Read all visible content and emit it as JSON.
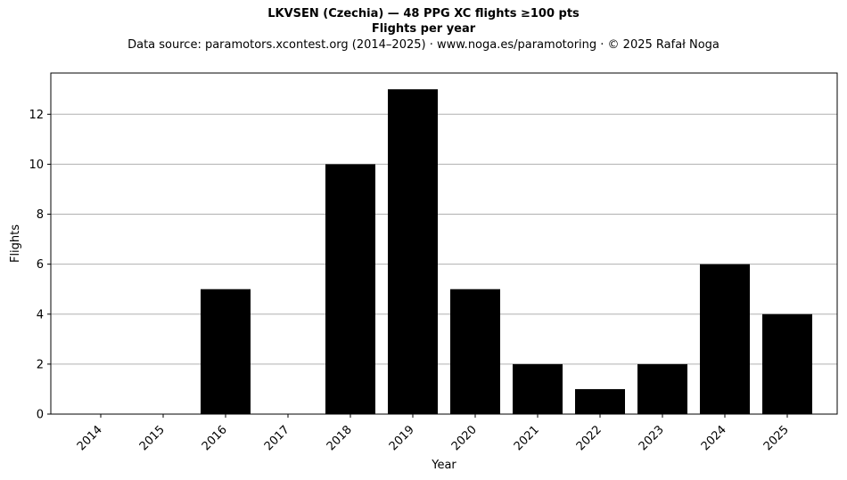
{
  "chart_data": {
    "type": "bar",
    "title": "LKVSEN (Czechia)  —  48 PPG XC flights ≥100 pts",
    "subtitle": "Flights per year",
    "source_note": "Data source: paramotors.xcontest.org (2014–2025)  ·  www.noga.es/paramotoring  ·  © 2025 Rafał Noga",
    "xlabel": "Year",
    "ylabel": "Flights",
    "categories": [
      "2014",
      "2015",
      "2016",
      "2017",
      "2018",
      "2019",
      "2020",
      "2021",
      "2022",
      "2023",
      "2024",
      "2025"
    ],
    "values": [
      0,
      0,
      5,
      0,
      10,
      13,
      5,
      2,
      1,
      2,
      6,
      4
    ],
    "ylim": [
      0,
      13.65
    ],
    "yticks": [
      0,
      2,
      4,
      6,
      8,
      10,
      12
    ],
    "grid": "y",
    "bar_color": "#000000",
    "legend": "none"
  }
}
